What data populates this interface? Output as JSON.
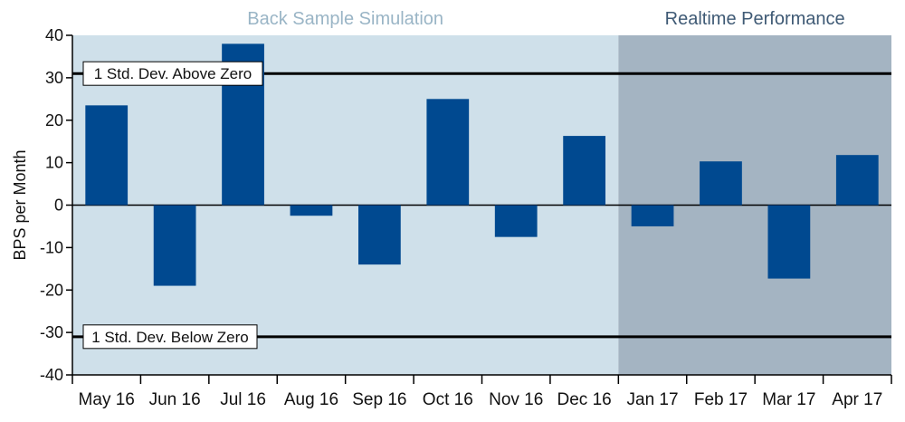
{
  "chart_data": {
    "type": "bar",
    "title": "",
    "xlabel": "",
    "ylabel": "BPS per Month",
    "ylim": [
      -40,
      40
    ],
    "yticks": [
      40,
      30,
      20,
      10,
      0,
      -10,
      -20,
      -30,
      -40
    ],
    "categories": [
      "May 16",
      "Jun 16",
      "Jul 16",
      "Aug 16",
      "Sep 16",
      "Oct 16",
      "Nov 16",
      "Dec 16",
      "Jan 17",
      "Feb 17",
      "Mar 17",
      "Apr 17"
    ],
    "values": [
      23.5,
      -19,
      38,
      -2.5,
      -14,
      25,
      -7.5,
      16.3,
      -5,
      10.3,
      -17.3,
      11.8
    ],
    "regions": [
      {
        "label": "Back Sample Simulation",
        "from_index": 0,
        "to_index": 7,
        "color": "#cfe0ea",
        "title_color": "#9ab5c6"
      },
      {
        "label": "Realtime Performance",
        "from_index": 8,
        "to_index": 11,
        "color": "#a4b4c2",
        "title_color": "#3f5a75"
      }
    ],
    "reference_lines": [
      {
        "y": 31,
        "label": "1 Std. Dev. Above Zero"
      },
      {
        "y": -31,
        "label": "1 Std. Dev. Below Zero"
      }
    ],
    "colors": {
      "bar": "#004990",
      "axis": "#000000",
      "grid": "#000000"
    }
  }
}
